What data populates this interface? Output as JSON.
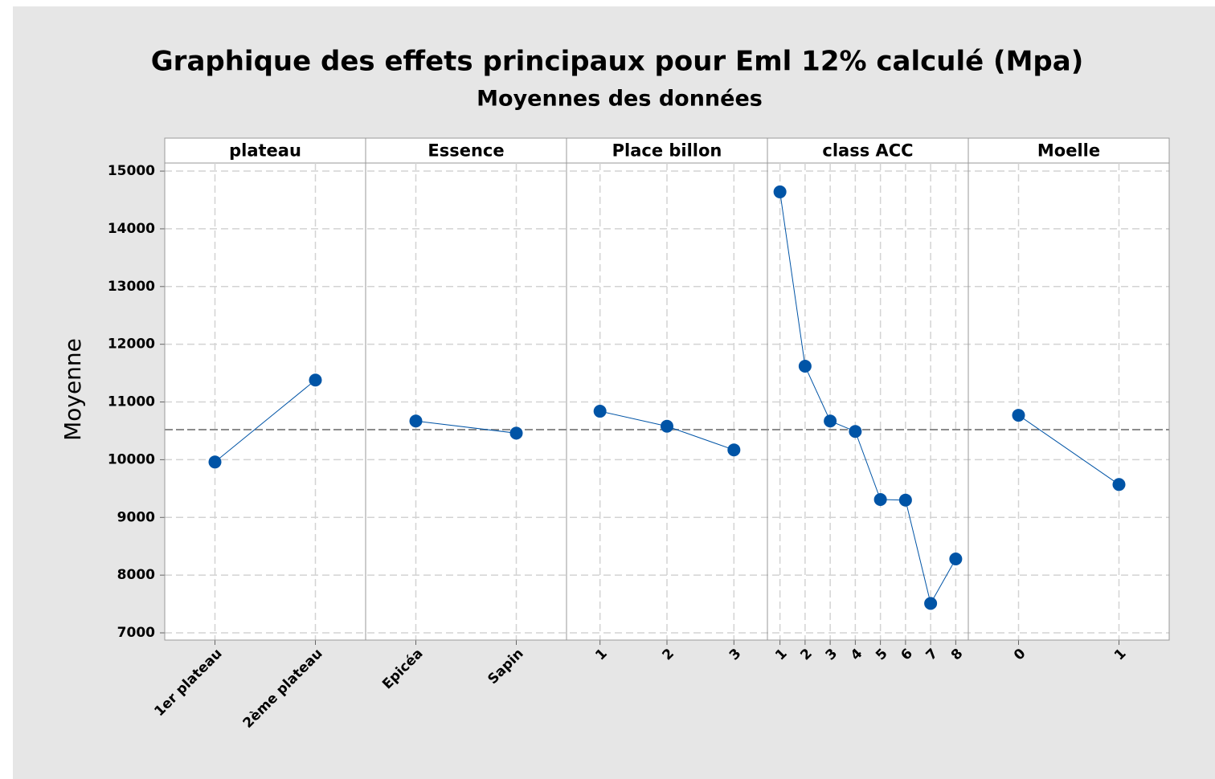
{
  "title": "Graphique des effets principaux pour Eml 12% calculé (Mpa)",
  "subtitle": "Moyennes des données",
  "y_label": "Moyenne",
  "ylim": [
    6875,
    15140
  ],
  "yticks": [
    7000,
    8000,
    9000,
    10000,
    11000,
    12000,
    13000,
    14000,
    15000
  ],
  "mean_line": 10520,
  "grid": true,
  "chart_data": [
    {
      "type": "line",
      "title": "plateau",
      "color": "#0054a6",
      "categories": [
        "1er plateau",
        "2ème plateau"
      ],
      "values": [
        9960,
        11380
      ]
    },
    {
      "type": "line",
      "title": "Essence",
      "color": "#0054a6",
      "categories": [
        "Epicéa",
        "Sapin"
      ],
      "values": [
        10670,
        10460
      ]
    },
    {
      "type": "line",
      "title": "Place billon",
      "color": "#0054a6",
      "categories": [
        "1",
        "2",
        "3"
      ],
      "values": [
        10840,
        10580,
        10170
      ]
    },
    {
      "type": "line",
      "title": "class ACC",
      "color": "#0054a6",
      "categories": [
        "1",
        "2",
        "3",
        "4",
        "5",
        "6",
        "7",
        "8"
      ],
      "values": [
        14640,
        11620,
        10670,
        10490,
        9310,
        9300,
        7510,
        8280
      ]
    },
    {
      "type": "line",
      "title": "Moelle",
      "color": "#0054a6",
      "categories": [
        "0",
        "1"
      ],
      "values": [
        10770,
        9570
      ]
    }
  ]
}
